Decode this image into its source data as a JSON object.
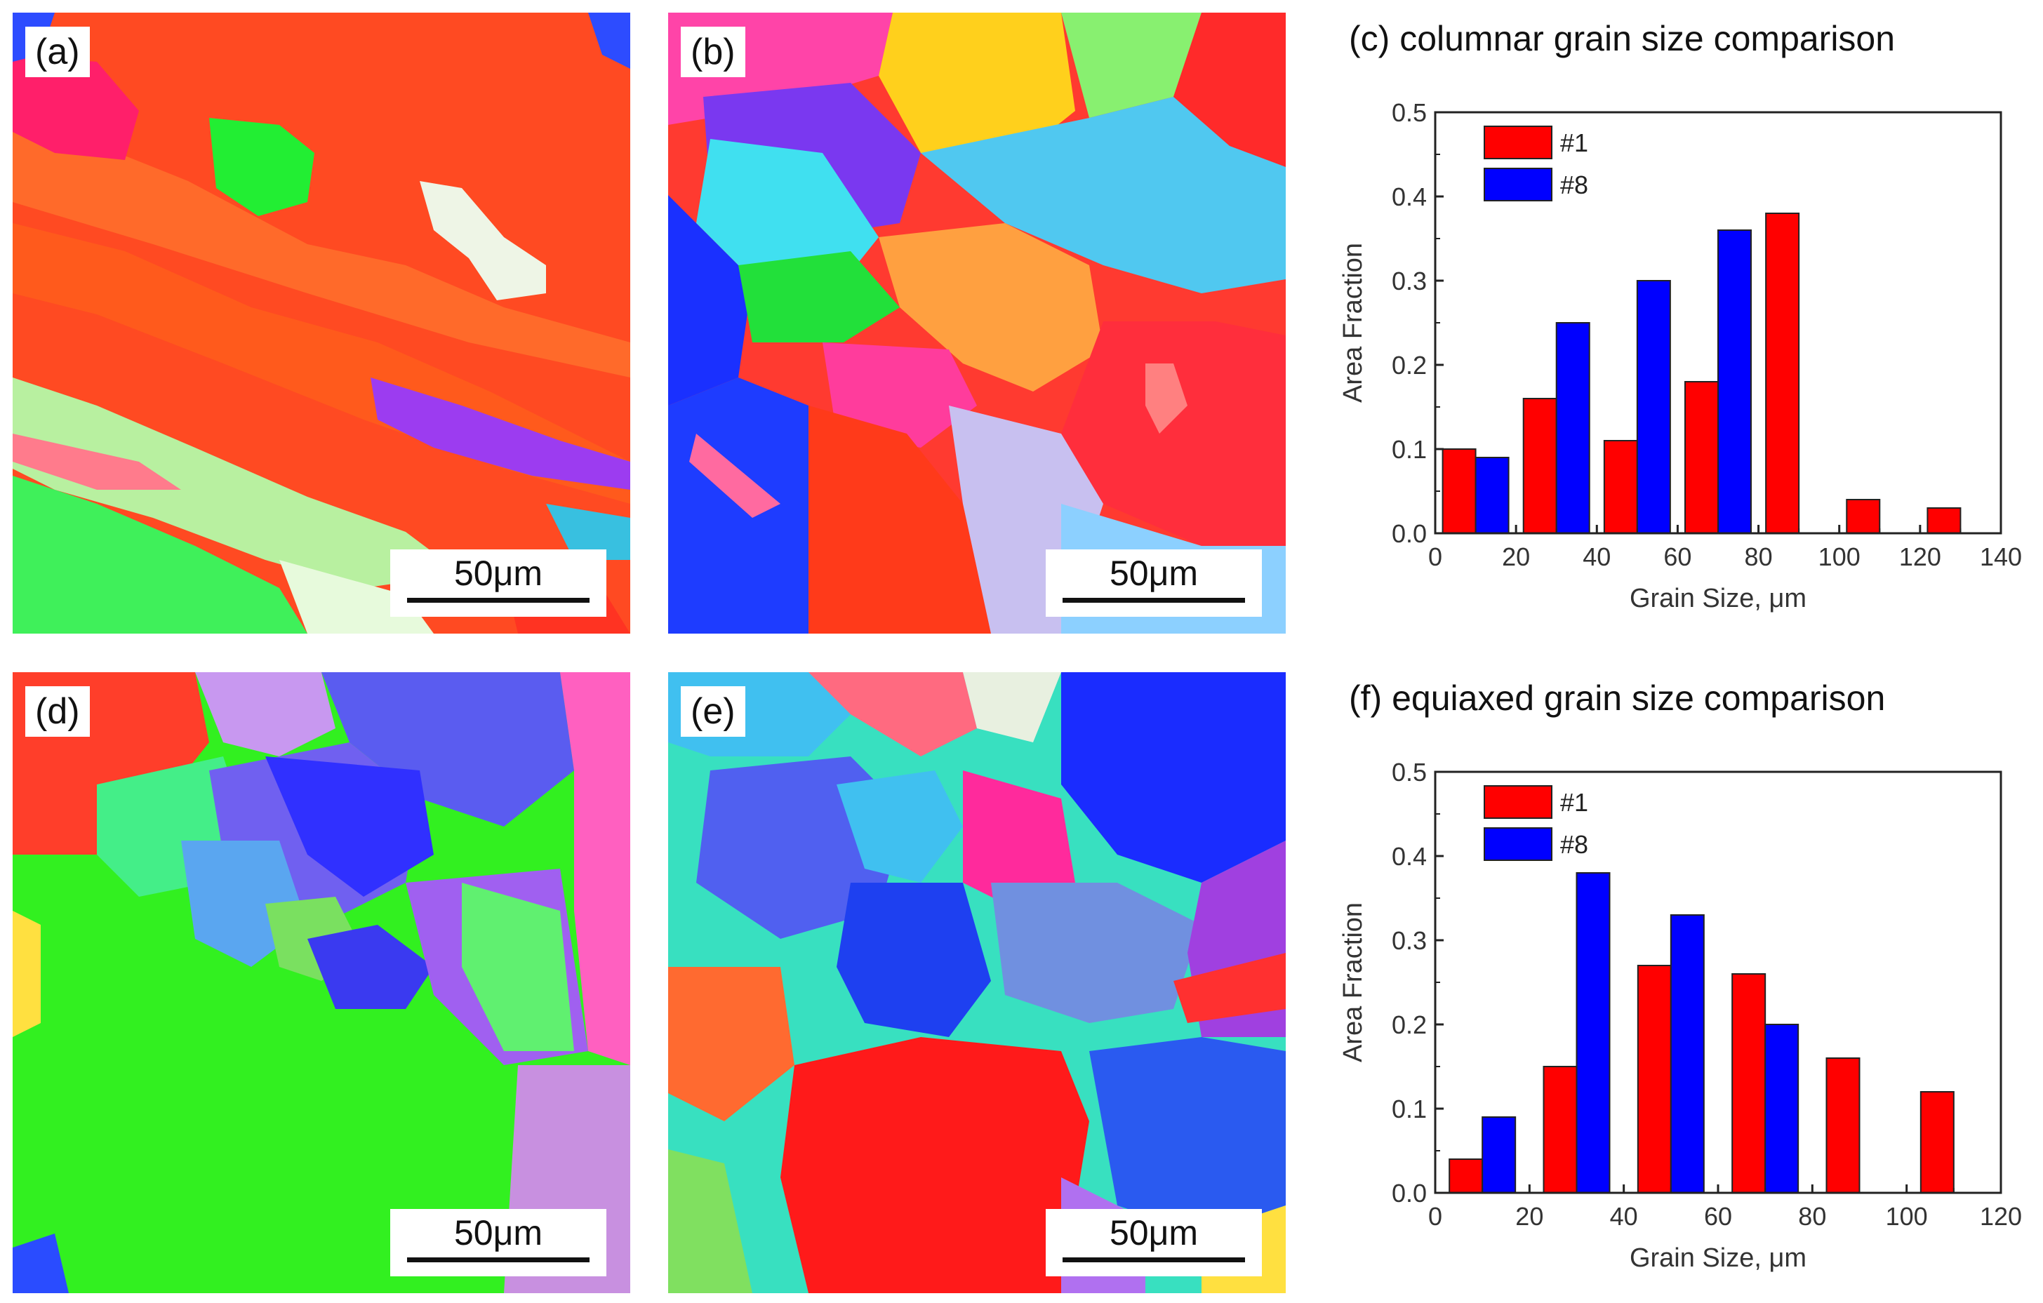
{
  "panels": [
    {
      "label": "(a)",
      "scale": "50μm"
    },
    {
      "label": "(b)",
      "scale": "50μm"
    },
    {
      "label": "(d)",
      "scale": "50μm"
    },
    {
      "label": "(e)",
      "scale": "50μm"
    }
  ],
  "chart_data": [
    {
      "type": "bar",
      "title": "(c)  columnar grain size comparison",
      "xlabel": "Grain Size, μm",
      "ylabel": "Area Fraction",
      "xlim": [
        0,
        140
      ],
      "ylim": [
        0,
        0.5
      ],
      "xticks": [
        0,
        20,
        40,
        60,
        80,
        100,
        120,
        140
      ],
      "yticks": [
        0.0,
        0.1,
        0.2,
        0.3,
        0.4,
        0.5
      ],
      "ytick_labels": [
        "0.0",
        "0.1",
        "0.2",
        "0.3",
        "0.4",
        "0.5"
      ],
      "legend_position": "top-left",
      "series": [
        {
          "name": "#1",
          "color": "#ff0000",
          "x": [
            10,
            30,
            50,
            70,
            90,
            110,
            130
          ],
          "values": [
            0.1,
            0.16,
            0.11,
            0.18,
            0.38,
            0.04,
            0.03
          ]
        },
        {
          "name": "#8",
          "color": "#0000ff",
          "x": [
            10,
            30,
            50,
            70
          ],
          "values": [
            0.09,
            0.25,
            0.3,
            0.36
          ]
        }
      ]
    },
    {
      "type": "bar",
      "title": "(f)  equiaxed grain size comparison",
      "xlabel": "Grain Size, μm",
      "ylabel": "Area Fraction",
      "xlim": [
        0,
        120
      ],
      "ylim": [
        0,
        0.5
      ],
      "xticks": [
        0,
        20,
        40,
        60,
        80,
        100,
        120
      ],
      "yticks": [
        0.0,
        0.1,
        0.2,
        0.3,
        0.4,
        0.5
      ],
      "ytick_labels": [
        "0.0",
        "0.1",
        "0.2",
        "0.3",
        "0.4",
        "0.5"
      ],
      "legend_position": "top-left",
      "series": [
        {
          "name": "#1",
          "color": "#ff0000",
          "x": [
            10,
            30,
            50,
            70,
            90,
            110
          ],
          "values": [
            0.04,
            0.15,
            0.27,
            0.26,
            0.16,
            0.12
          ]
        },
        {
          "name": "#8",
          "color": "#0000ff",
          "x": [
            10,
            30,
            50,
            70
          ],
          "values": [
            0.09,
            0.38,
            0.33,
            0.2
          ]
        }
      ]
    }
  ]
}
